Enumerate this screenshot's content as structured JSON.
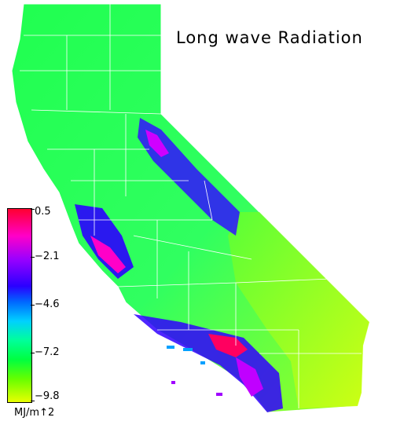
{
  "title": "Long wave Radiation",
  "legend": {
    "ticks": [
      "0.5",
      "−2.1",
      "−4.6",
      "−7.2",
      "−9.8"
    ],
    "units": "MJ/m↑2",
    "colors": [
      "#ff0030",
      "#ff00c8",
      "#9a00ff",
      "#2a00ff",
      "#0066ff",
      "#00d0ff",
      "#00ff9a",
      "#00ff40",
      "#66ff00",
      "#e8ff00"
    ]
  }
}
